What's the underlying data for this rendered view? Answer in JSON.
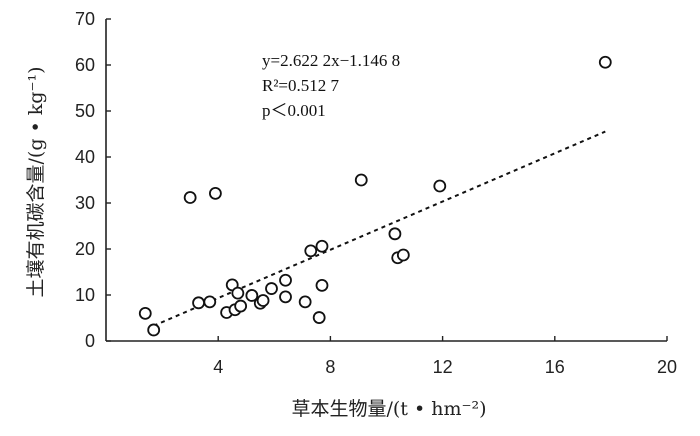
{
  "chart_data": {
    "type": "scatter",
    "xlabel": "草本生物量/(t • hm⁻²)",
    "ylabel": "土壤有机碳含量/(g • kg⁻¹)",
    "xlim": [
      0,
      20
    ],
    "ylim": [
      0,
      70
    ],
    "x_ticks": [
      4,
      8,
      12,
      16,
      20
    ],
    "x_tick_labels": [
      "4",
      "8",
      "12",
      "16",
      "20"
    ],
    "y_ticks": [
      0,
      10,
      20,
      30,
      40,
      50,
      60,
      70
    ],
    "y_tick_labels": [
      "0",
      "10",
      "20",
      "30",
      "40",
      "50",
      "60",
      "70"
    ],
    "grid": false,
    "points": [
      {
        "x": 1.4,
        "y": 6.0
      },
      {
        "x": 1.7,
        "y": 2.4
      },
      {
        "x": 3.0,
        "y": 31.2
      },
      {
        "x": 3.3,
        "y": 8.3
      },
      {
        "x": 3.7,
        "y": 8.5
      },
      {
        "x": 3.9,
        "y": 32.1
      },
      {
        "x": 4.3,
        "y": 6.2
      },
      {
        "x": 4.5,
        "y": 12.2
      },
      {
        "x": 4.6,
        "y": 6.8
      },
      {
        "x": 4.7,
        "y": 10.4
      },
      {
        "x": 4.8,
        "y": 7.6
      },
      {
        "x": 5.2,
        "y": 9.9
      },
      {
        "x": 5.5,
        "y": 8.2
      },
      {
        "x": 5.6,
        "y": 8.8
      },
      {
        "x": 5.9,
        "y": 11.4
      },
      {
        "x": 6.4,
        "y": 13.2
      },
      {
        "x": 6.4,
        "y": 9.6
      },
      {
        "x": 7.1,
        "y": 8.5
      },
      {
        "x": 7.3,
        "y": 19.6
      },
      {
        "x": 7.6,
        "y": 5.1
      },
      {
        "x": 7.7,
        "y": 12.1
      },
      {
        "x": 7.7,
        "y": 20.6
      },
      {
        "x": 9.1,
        "y": 35.0
      },
      {
        "x": 10.3,
        "y": 23.3
      },
      {
        "x": 10.4,
        "y": 18.1
      },
      {
        "x": 10.6,
        "y": 18.7
      },
      {
        "x": 11.9,
        "y": 33.7
      },
      {
        "x": 17.8,
        "y": 60.6
      }
    ],
    "fit": {
      "slope": 2.6222,
      "intercept": -1.1468,
      "x_range": [
        1.7,
        17.8
      ]
    },
    "annotations": {
      "equation": "y=2.622 2x−1.146 8",
      "r2": "R²=0.512 7",
      "p": "p＜0.001"
    }
  }
}
